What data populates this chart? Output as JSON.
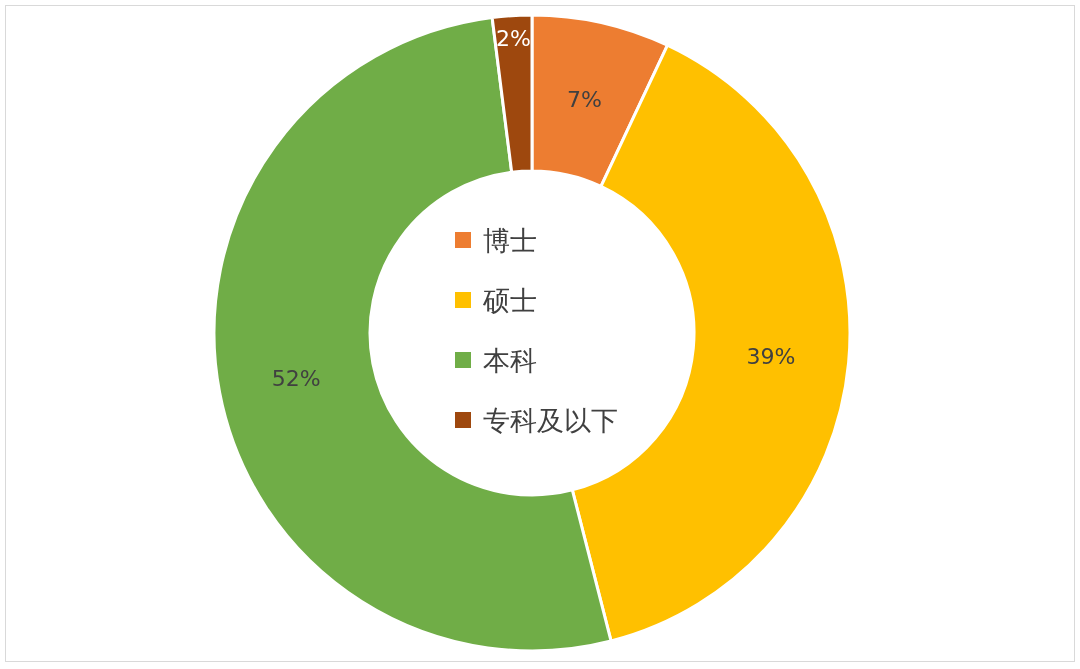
{
  "chart_data": {
    "type": "donut",
    "categories": [
      "博士",
      "硕士",
      "本科",
      "专科及以下"
    ],
    "values": [
      7,
      39,
      52,
      2
    ],
    "colors": [
      "#ed7d31",
      "#ffc000",
      "#70ad47",
      "#9e480e"
    ],
    "value_labels": [
      "7%",
      "39%",
      "52%",
      "2%"
    ],
    "legend": "center"
  }
}
